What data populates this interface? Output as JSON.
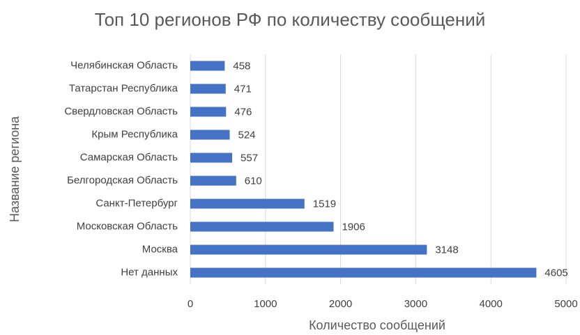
{
  "chart_data": {
    "type": "bar",
    "orientation": "horizontal",
    "title": "Топ 10 регионов РФ по количеству сообщений",
    "x_label": "Количество сообщений",
    "y_label": "Название региона",
    "categories": [
      "Челябинская Область",
      "Татарстан Республика",
      "Свердловская Область",
      "Крым Республика",
      "Самарская Область",
      "Белгородская Область",
      "Санкт-Петербург",
      "Московская Область",
      "Москва",
      "Нет данных"
    ],
    "values": [
      458,
      471,
      476,
      524,
      557,
      610,
      1519,
      1906,
      3148,
      4605
    ],
    "color": "#4472c4",
    "xlim": [
      0,
      5000
    ],
    "xticks": [
      0,
      1000,
      2000,
      3000,
      4000,
      5000
    ],
    "grid": true
  }
}
